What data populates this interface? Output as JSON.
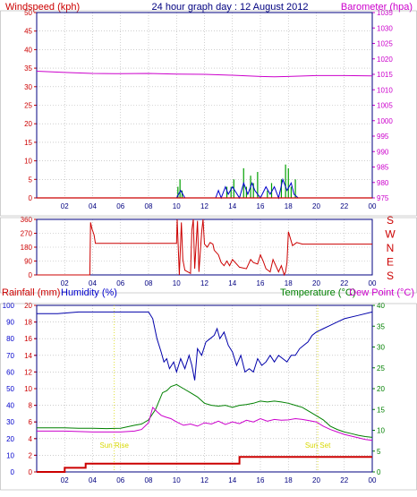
{
  "chart_data": [
    {
      "type": "line",
      "title": "24 hour graph day : 12 August 2012",
      "ylabel": "Windspeed (kph)",
      "y2label": "Barometer (hpa)",
      "xticks": [
        "02",
        "04",
        "06",
        "08",
        "10",
        "12",
        "14",
        "16",
        "18",
        "20",
        "22",
        "00"
      ],
      "ylim": [
        0,
        50
      ],
      "yticks": [
        "0",
        "5",
        "10",
        "15",
        "20",
        "25",
        "30",
        "35",
        "40",
        "45",
        "50"
      ],
      "y2lim": [
        975,
        1035
      ],
      "y2ticks": [
        "975",
        "980",
        "985",
        "990",
        "995",
        "1000",
        "1005",
        "1010",
        "1015",
        "1020",
        "1025",
        "1030",
        "1035"
      ],
      "colors": {
        "frame": "#000080",
        "left_axis": "#cc0000",
        "right_axis": "#cc00cc",
        "wind": "#cc0000",
        "gust": "#00a000",
        "avg": "#0000cc",
        "baro": "#cc00cc"
      },
      "series": [
        {
          "key": "barometer",
          "axis": "right",
          "x": [
            0,
            2,
            4,
            6,
            8,
            10,
            12,
            14,
            16,
            17,
            18,
            20,
            22,
            24
          ],
          "values": [
            1016,
            1015.6,
            1015.3,
            1015.2,
            1015.3,
            1015.1,
            1015,
            1014.7,
            1014.3,
            1014.2,
            1014.3,
            1014.6,
            1014.6,
            1014.5
          ]
        },
        {
          "key": "gust",
          "axis": "left",
          "x": [
            10,
            10.1,
            10.25,
            10.4,
            10.5,
            13.4,
            13.6,
            13.9,
            14.1,
            14.2,
            14.8,
            15.0,
            15.3,
            15.5,
            15.8,
            16.0,
            16.5,
            16.8,
            17.0,
            17.5,
            17.8,
            18.0,
            18.2,
            18.5,
            18.8
          ],
          "values": [
            0,
            3,
            5,
            2,
            0,
            0,
            3,
            3,
            5,
            0,
            8,
            3,
            6,
            4,
            7,
            0,
            2,
            4,
            0,
            5,
            9,
            8,
            3,
            5,
            0
          ]
        },
        {
          "key": "wind",
          "axis": "left",
          "x": [
            0,
            10,
            10.3,
            10.6,
            12.8,
            13.0,
            13.2,
            13.5,
            13.7,
            14.0,
            14.5,
            14.8,
            15.1,
            15.4,
            15.6,
            16.0,
            16.4,
            16.7,
            17.0,
            17.3,
            17.6,
            17.9,
            18.2,
            18.4,
            18.7,
            24
          ],
          "values": [
            0,
            0,
            2,
            0,
            0,
            2,
            0,
            3,
            1,
            3,
            0,
            4,
            1,
            4,
            2,
            0,
            3,
            1,
            3,
            0,
            5,
            2,
            4,
            1,
            0,
            0
          ]
        }
      ]
    },
    {
      "type": "line",
      "ylim": [
        0,
        360
      ],
      "yticks": [
        "0",
        "90",
        "180",
        "270",
        "360"
      ],
      "compass": [
        "S",
        "E",
        "N",
        "W",
        "S"
      ],
      "xticks": [
        "02",
        "04",
        "06",
        "08",
        "10",
        "12",
        "14",
        "16",
        "18",
        "20",
        "22",
        "00"
      ],
      "colors": {
        "frame": "#000080",
        "left_axis": "#cc0000",
        "line": "#cc0000"
      },
      "series": [
        {
          "key": "wind_direction",
          "x": [
            0,
            3.8,
            3.85,
            3.95,
            4.1,
            4.2,
            10.0,
            10.05,
            10.2,
            10.35,
            10.45,
            10.6,
            10.8,
            11.0,
            11.1,
            11.2,
            11.3,
            11.5,
            11.6,
            11.8,
            11.9,
            12.0,
            12.2,
            12.4,
            12.6,
            12.7,
            13.0,
            13.2,
            13.4,
            13.6,
            13.8,
            14.0,
            14.5,
            15.0,
            15.3,
            15.5,
            15.8,
            16.0,
            16.2,
            16.4,
            16.7,
            16.9,
            17.1,
            17.3,
            17.5,
            17.7,
            17.8,
            17.9,
            18.0,
            18.3,
            18.6,
            19.0,
            24
          ],
          "values": [
            0,
            0,
            340,
            300,
            260,
            205,
            205,
            360,
            0,
            340,
            100,
            30,
            20,
            10,
            290,
            360,
            40,
            350,
            20,
            280,
            360,
            200,
            180,
            210,
            200,
            160,
            130,
            80,
            60,
            90,
            60,
            100,
            50,
            40,
            100,
            80,
            70,
            130,
            90,
            40,
            20,
            100,
            60,
            20,
            60,
            0,
            20,
            80,
            280,
            190,
            210,
            200,
            200
          ]
        }
      ]
    },
    {
      "type": "line",
      "ylabel": "Rainfall (mm)",
      "ylabel2": "Humidity (%)",
      "y2label": "Temperature (°C)",
      "y2label2": "Dew Point (°C)",
      "ylim_rain": [
        0,
        20
      ],
      "yticks_rain": [
        "0",
        "2",
        "4",
        "6",
        "8",
        "10",
        "12",
        "14",
        "16",
        "18",
        "20"
      ],
      "ylim_hum": [
        0,
        100
      ],
      "yticks_hum": [
        "0",
        "10",
        "20",
        "30",
        "40",
        "50",
        "60",
        "70",
        "80",
        "90",
        "100"
      ],
      "y2lim": [
        0,
        40
      ],
      "y2ticks": [
        "0",
        "5",
        "10",
        "15",
        "20",
        "25",
        "30",
        "35",
        "40"
      ],
      "xticks": [
        "02",
        "04",
        "06",
        "08",
        "10",
        "12",
        "14",
        "16",
        "18",
        "20",
        "22",
        "00"
      ],
      "annotations": [
        {
          "text": "Sun Rise",
          "x": 5.55
        },
        {
          "text": "Sun Set",
          "x": 20.1
        }
      ],
      "colors": {
        "frame": "#000080",
        "rain_axis": "#cc0000",
        "hum_axis": "#0000cc",
        "temp_axis": "#008000",
        "rain": "#cc0000",
        "humidity": "#0000aa",
        "temperature": "#008000",
        "dewpoint": "#cc00cc",
        "sun": "#d8d800"
      },
      "series": [
        {
          "key": "humidity",
          "x": [
            0,
            0.5,
            1.5,
            3,
            5,
            7,
            8,
            8.3,
            8.6,
            8.9,
            9.1,
            9.3,
            9.5,
            9.8,
            10.0,
            10.3,
            10.6,
            10.9,
            11.1,
            11.3,
            11.5,
            11.8,
            12.1,
            12.4,
            12.7,
            12.9,
            13.1,
            13.4,
            13.7,
            14.0,
            14.3,
            14.6,
            14.9,
            15.2,
            15.5,
            15.8,
            16.1,
            16.4,
            16.7,
            17.0,
            17.3,
            17.6,
            17.9,
            18.2,
            18.5,
            18.8,
            19.1,
            19.4,
            19.7,
            20.0,
            20.5,
            21,
            21.5,
            22,
            23,
            24
          ],
          "values": [
            95,
            95,
            95,
            96,
            96,
            96,
            96,
            92,
            80,
            72,
            66,
            68,
            62,
            66,
            60,
            68,
            62,
            70,
            64,
            55,
            74,
            70,
            78,
            80,
            82,
            86,
            80,
            84,
            76,
            72,
            64,
            70,
            60,
            62,
            60,
            68,
            64,
            66,
            70,
            66,
            70,
            68,
            66,
            70,
            70,
            74,
            76,
            78,
            82,
            84,
            86,
            88,
            90,
            92,
            94,
            96
          ]
        },
        {
          "key": "temperature",
          "x": [
            0,
            1,
            2,
            3,
            4,
            5,
            6,
            7,
            7.5,
            8,
            8.5,
            9,
            9.3,
            9.6,
            10,
            10.5,
            11,
            11.5,
            12,
            12.5,
            13,
            13.5,
            14,
            14.5,
            15,
            15.5,
            16,
            16.5,
            17,
            17.5,
            18,
            18.5,
            19,
            19.5,
            20,
            20.5,
            21,
            21.5,
            22,
            22.5,
            23,
            23.5,
            24
          ],
          "values": [
            10.6,
            10.6,
            10.6,
            10.5,
            10.5,
            10.4,
            10.5,
            11.2,
            11.5,
            12.5,
            15,
            19,
            19.5,
            20.5,
            21,
            20,
            19,
            18,
            16.5,
            16,
            15.8,
            16,
            15.5,
            16,
            16.2,
            16.5,
            17,
            16.8,
            17,
            16.8,
            16.5,
            16,
            15.5,
            14.5,
            13.5,
            12.5,
            11,
            10.2,
            9.6,
            9.2,
            8.8,
            8.5,
            8.3
          ]
        },
        {
          "key": "dewpoint",
          "x": [
            0,
            1,
            2,
            3,
            4,
            5,
            6,
            7,
            7.5,
            8,
            8.3,
            8.6,
            8.9,
            9.2,
            9.6,
            10,
            10.5,
            11,
            11.5,
            12,
            12.5,
            13,
            13.5,
            14,
            14.5,
            15,
            15.5,
            16,
            16.5,
            17,
            17.5,
            18,
            18.5,
            19,
            19.5,
            20,
            20.5,
            21,
            21.5,
            22,
            22.5,
            23,
            23.5,
            24
          ],
          "values": [
            9.8,
            9.8,
            9.8,
            9.7,
            9.6,
            9.6,
            9.6,
            9.8,
            10.2,
            11.8,
            15.5,
            14.5,
            13.6,
            13.2,
            12.8,
            12,
            11.2,
            11.5,
            11,
            11.8,
            11.5,
            12.2,
            11.4,
            12,
            11.6,
            12.4,
            12,
            12.8,
            12.2,
            12.6,
            12.4,
            12.5,
            12.8,
            12.6,
            12.3,
            12,
            11,
            10.2,
            9.6,
            9,
            8.6,
            8.2,
            7.8,
            7.6
          ]
        },
        {
          "key": "rain",
          "x": [
            0,
            2,
            2,
            3.5,
            3.5,
            14.5,
            14.5,
            24
          ],
          "values": [
            0,
            0,
            0.5,
            0.5,
            1,
            1,
            1.8,
            1.8
          ]
        }
      ]
    }
  ]
}
